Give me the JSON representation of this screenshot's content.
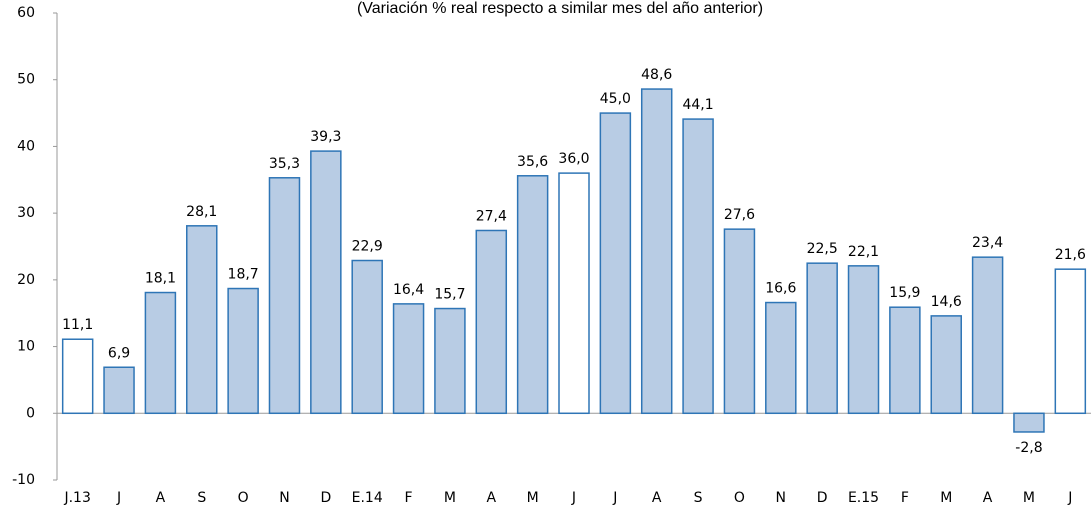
{
  "chart_data": {
    "type": "bar",
    "subtitle": "(Variación % real respecto a similar mes del año anterior)",
    "categories": [
      "J.13",
      "J",
      "A",
      "S",
      "O",
      "N",
      "D",
      "E.14",
      "F",
      "M",
      "A",
      "M",
      "J",
      "J",
      "A",
      "S",
      "O",
      "N",
      "D",
      "E.15",
      "F",
      "M",
      "A",
      "M",
      "J"
    ],
    "values": [
      11.1,
      6.9,
      18.1,
      28.1,
      18.7,
      35.3,
      39.3,
      22.9,
      16.4,
      15.7,
      27.4,
      35.6,
      36.0,
      45.0,
      48.6,
      44.1,
      27.6,
      16.6,
      22.5,
      22.1,
      15.9,
      14.6,
      23.4,
      -2.8,
      21.6
    ],
    "value_labels": [
      "11,1",
      "6,9",
      "18,1",
      "28,1",
      "18,7",
      "35,3",
      "39,3",
      "22,9",
      "16,4",
      "15,7",
      "27,4",
      "35,6",
      "36,0",
      "45,0",
      "48,6",
      "44,1",
      "27,6",
      "16,6",
      "22,5",
      "22,1",
      "15,9",
      "14,6",
      "23,4",
      "-2,8",
      "21,6"
    ],
    "colors": [
      "#ffffff",
      "#b8cce4",
      "#b8cce4",
      "#b8cce4",
      "#b8cce4",
      "#b8cce4",
      "#b8cce4",
      "#b8cce4",
      "#b8cce4",
      "#b8cce4",
      "#b8cce4",
      "#b8cce4",
      "#ffffff",
      "#b8cce4",
      "#b8cce4",
      "#b8cce4",
      "#b8cce4",
      "#b8cce4",
      "#b8cce4",
      "#b8cce4",
      "#b8cce4",
      "#b8cce4",
      "#b8cce4",
      "#b8cce4",
      "#ffffff"
    ],
    "border_color": "#2e75b6",
    "ylim": [
      -10,
      60
    ],
    "yticks": [
      -10,
      0,
      10,
      20,
      30,
      40,
      50,
      60
    ],
    "grid": false
  }
}
